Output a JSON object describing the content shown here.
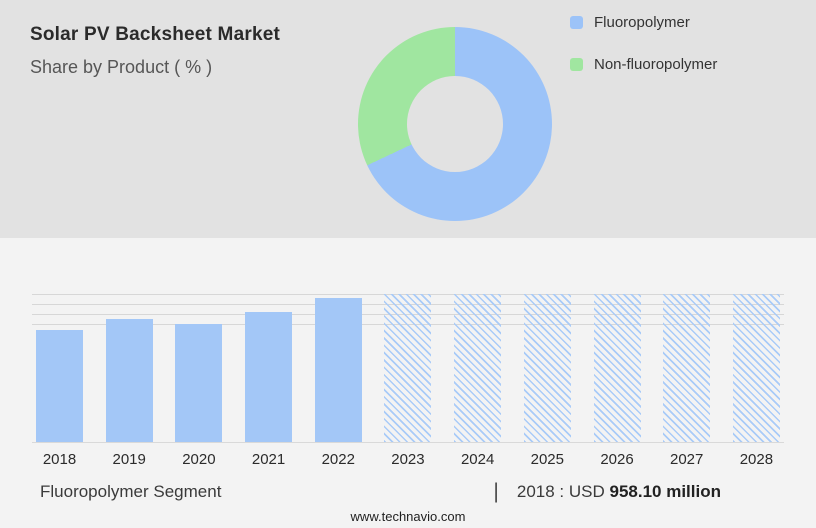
{
  "header": {
    "title": "Solar PV Backsheet Market",
    "subtitle": "Share by Product ( % )"
  },
  "legend": {
    "items": [
      {
        "label": "Fluoropolymer",
        "color": "#9cc3f8"
      },
      {
        "label": "Non-fluoropolymer",
        "color": "#a0e6a0"
      }
    ]
  },
  "chart_data": [
    {
      "type": "pie",
      "donut": true,
      "title": "Share by Product ( % )",
      "labels": [
        "Fluoropolymer",
        "Non-fluoropolymer"
      ],
      "values": [
        68,
        32
      ],
      "colors": [
        "#9cc3f8",
        "#a0e6a0"
      ],
      "legend_position": "right"
    },
    {
      "type": "bar",
      "categories": [
        "2018",
        "2019",
        "2020",
        "2021",
        "2022",
        "2023",
        "2024",
        "2025",
        "2026",
        "2027",
        "2028"
      ],
      "series": [
        {
          "name": "Fluoropolymer Segment",
          "relative_heights_pct": [
            76,
            83,
            80,
            88,
            97,
            100,
            100,
            100,
            100,
            100,
            100
          ]
        }
      ],
      "bar_styles": [
        "solid",
        "solid",
        "solid",
        "solid",
        "solid",
        "hatched",
        "hatched",
        "hatched",
        "hatched",
        "hatched",
        "hatched"
      ],
      "forecast_from": "2023",
      "known_values": {
        "2018": "USD 958.10 million"
      },
      "xlabel": "",
      "ylabel": "",
      "ylim": [
        0,
        100
      ],
      "grid": "horizontal, top of plot only",
      "colors": {
        "solid_bar": "#a3c7f7",
        "hatched_bar": "#a9cbf8"
      }
    }
  ],
  "footnote": {
    "segment_label": "Fluoropolymer Segment",
    "separator": "|",
    "value_prefix": "2018 : USD",
    "value_bold": "958.10 million"
  },
  "footer": {
    "website": "www.technavio.com"
  }
}
